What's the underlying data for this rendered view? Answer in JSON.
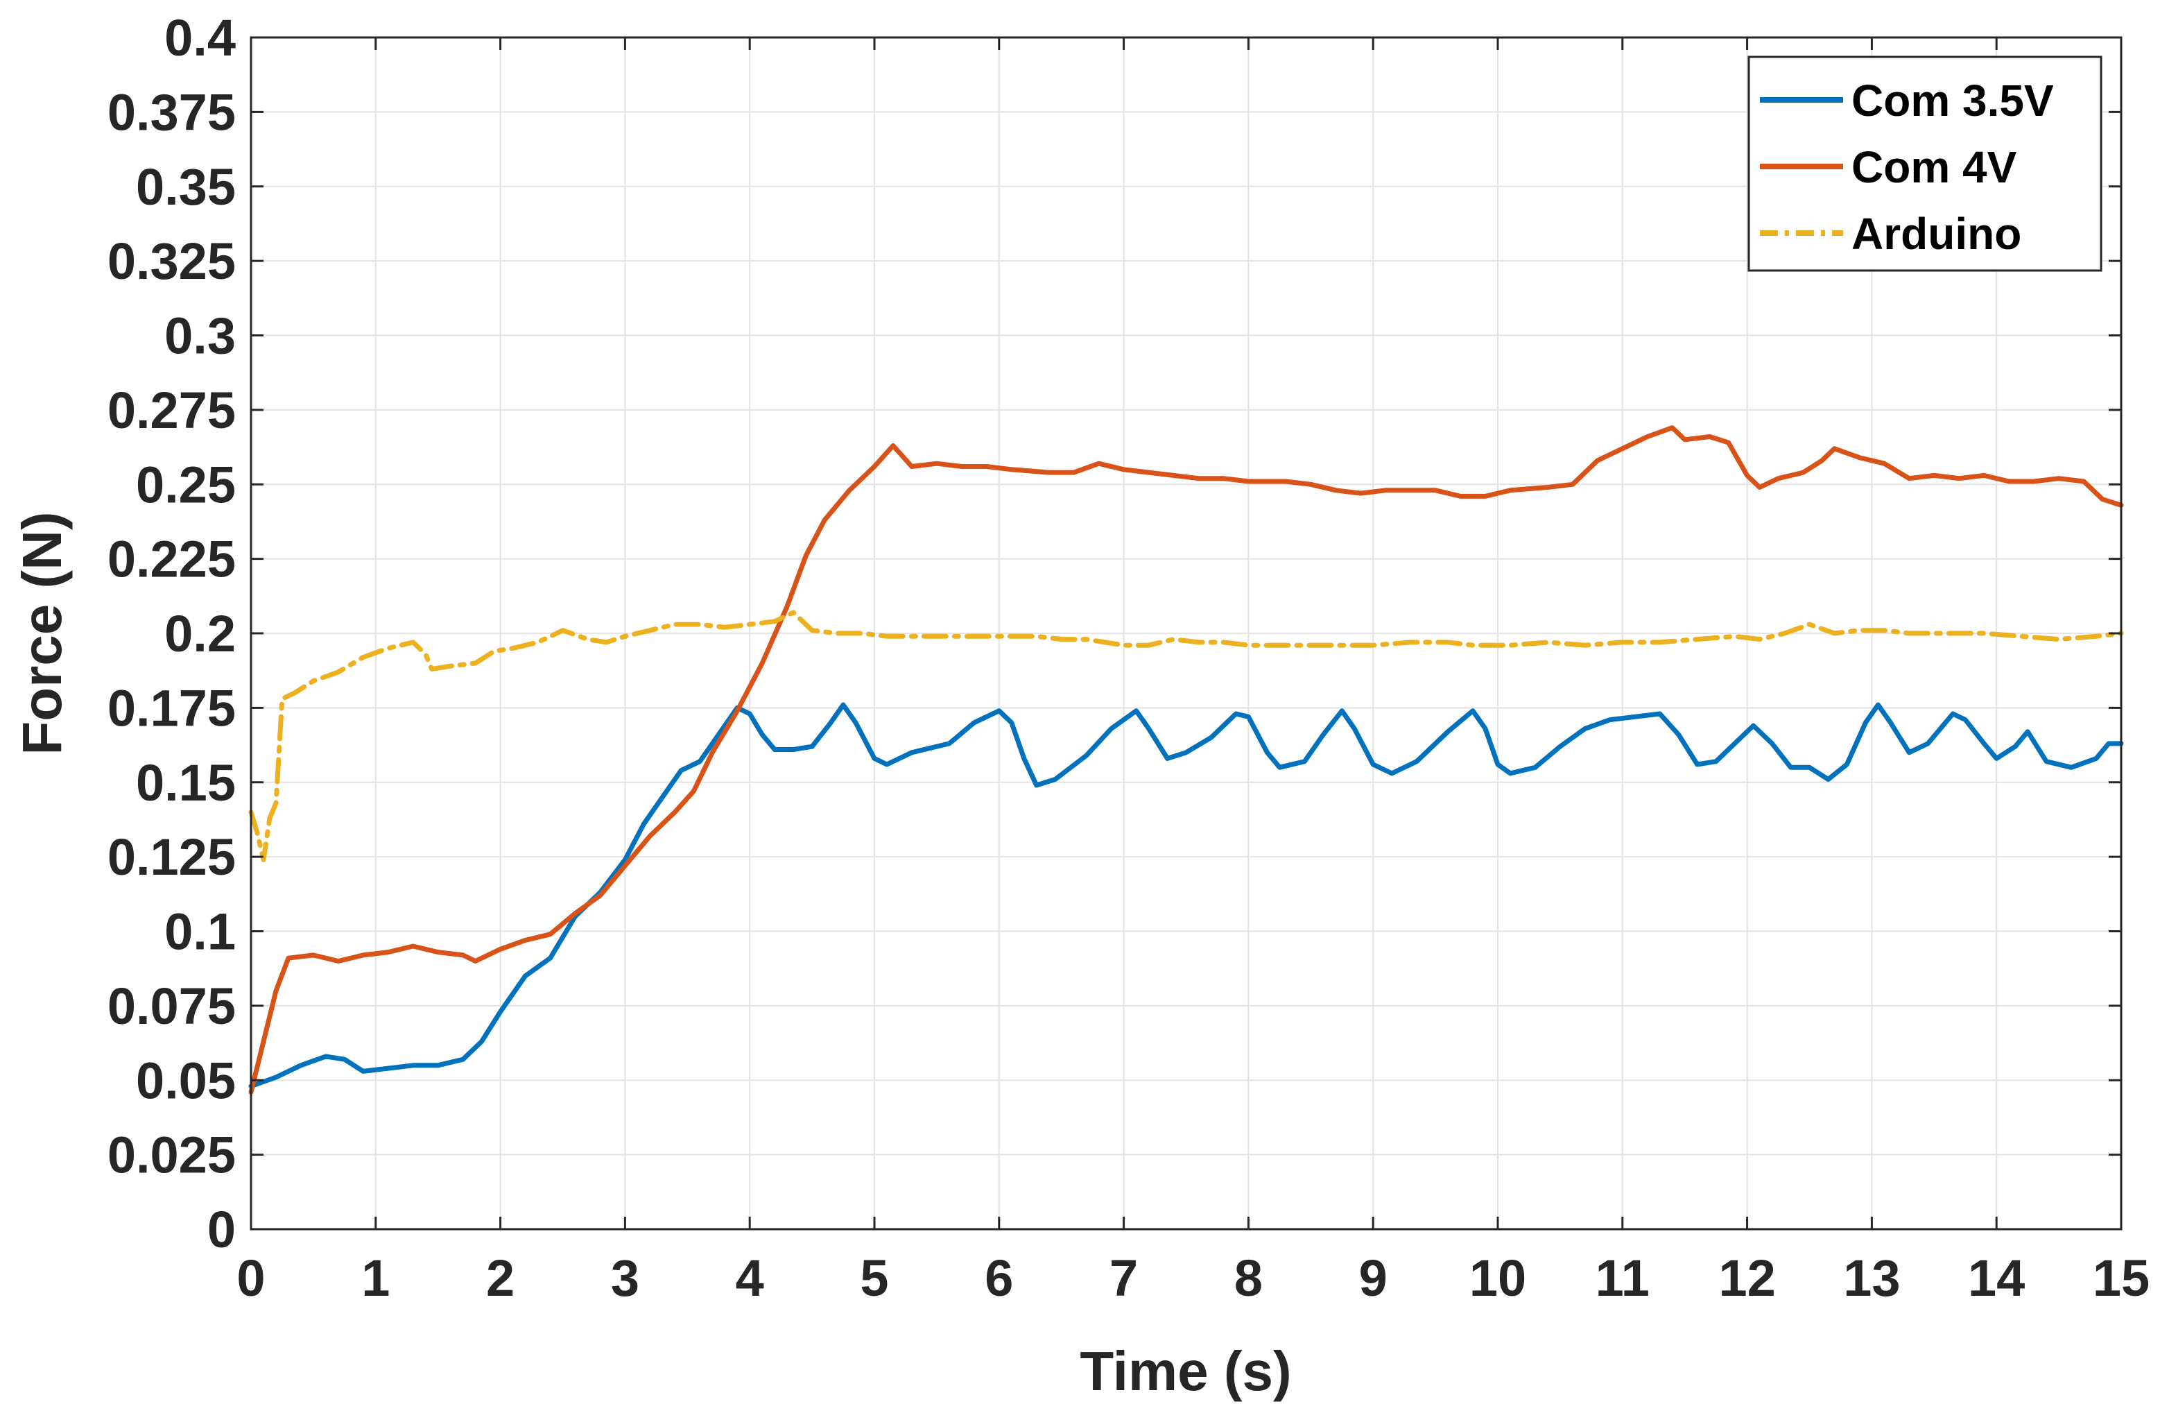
{
  "chart_data": {
    "type": "line",
    "title": "",
    "xlabel": "Time (s)",
    "ylabel": "Force (N)",
    "xlim": [
      0,
      15
    ],
    "ylim": [
      0,
      0.4
    ],
    "grid": true,
    "legend_position": "top-right",
    "x_ticks": [
      "0",
      "1",
      "2",
      "3",
      "4",
      "5",
      "6",
      "7",
      "8",
      "9",
      "10",
      "11",
      "12",
      "13",
      "14",
      "15"
    ],
    "y_ticks": [
      "0",
      "0.025",
      "0.05",
      "0.075",
      "0.1",
      "0.125",
      "0.15",
      "0.175",
      "0.2",
      "0.225",
      "0.25",
      "0.275",
      "0.3",
      "0.325",
      "0.35",
      "0.375",
      "0.4"
    ],
    "series": [
      {
        "name": "Com 3.5V",
        "color": "#0072BD",
        "dash": "solid",
        "points": [
          [
            0,
            0.048
          ],
          [
            0.2,
            0.051
          ],
          [
            0.4,
            0.055
          ],
          [
            0.6,
            0.058
          ],
          [
            0.75,
            0.057
          ],
          [
            0.9,
            0.053
          ],
          [
            1.1,
            0.054
          ],
          [
            1.3,
            0.055
          ],
          [
            1.5,
            0.055
          ],
          [
            1.7,
            0.057
          ],
          [
            1.85,
            0.063
          ],
          [
            2.0,
            0.073
          ],
          [
            2.2,
            0.085
          ],
          [
            2.4,
            0.091
          ],
          [
            2.6,
            0.105
          ],
          [
            2.8,
            0.113
          ],
          [
            3.0,
            0.124
          ],
          [
            3.15,
            0.136
          ],
          [
            3.3,
            0.145
          ],
          [
            3.45,
            0.154
          ],
          [
            3.6,
            0.157
          ],
          [
            3.75,
            0.166
          ],
          [
            3.9,
            0.175
          ],
          [
            4.0,
            0.173
          ],
          [
            4.1,
            0.166
          ],
          [
            4.2,
            0.161
          ],
          [
            4.35,
            0.161
          ],
          [
            4.5,
            0.162
          ],
          [
            4.65,
            0.17
          ],
          [
            4.75,
            0.176
          ],
          [
            4.85,
            0.17
          ],
          [
            5.0,
            0.158
          ],
          [
            5.1,
            0.156
          ],
          [
            5.3,
            0.16
          ],
          [
            5.6,
            0.163
          ],
          [
            5.8,
            0.17
          ],
          [
            6.0,
            0.174
          ],
          [
            6.1,
            0.17
          ],
          [
            6.2,
            0.158
          ],
          [
            6.3,
            0.149
          ],
          [
            6.45,
            0.151
          ],
          [
            6.7,
            0.159
          ],
          [
            6.9,
            0.168
          ],
          [
            7.1,
            0.174
          ],
          [
            7.2,
            0.168
          ],
          [
            7.35,
            0.158
          ],
          [
            7.5,
            0.16
          ],
          [
            7.7,
            0.165
          ],
          [
            7.9,
            0.173
          ],
          [
            8.0,
            0.172
          ],
          [
            8.15,
            0.16
          ],
          [
            8.25,
            0.155
          ],
          [
            8.45,
            0.157
          ],
          [
            8.6,
            0.166
          ],
          [
            8.75,
            0.174
          ],
          [
            8.85,
            0.168
          ],
          [
            9.0,
            0.156
          ],
          [
            9.15,
            0.153
          ],
          [
            9.35,
            0.157
          ],
          [
            9.6,
            0.167
          ],
          [
            9.8,
            0.174
          ],
          [
            9.9,
            0.168
          ],
          [
            10.0,
            0.156
          ],
          [
            10.1,
            0.153
          ],
          [
            10.3,
            0.155
          ],
          [
            10.5,
            0.162
          ],
          [
            10.7,
            0.168
          ],
          [
            10.9,
            0.171
          ],
          [
            11.1,
            0.172
          ],
          [
            11.3,
            0.173
          ],
          [
            11.45,
            0.166
          ],
          [
            11.6,
            0.156
          ],
          [
            11.75,
            0.157
          ],
          [
            11.9,
            0.163
          ],
          [
            12.05,
            0.169
          ],
          [
            12.2,
            0.163
          ],
          [
            12.35,
            0.155
          ],
          [
            12.5,
            0.155
          ],
          [
            12.65,
            0.151
          ],
          [
            12.8,
            0.156
          ],
          [
            12.95,
            0.17
          ],
          [
            13.05,
            0.176
          ],
          [
            13.15,
            0.17
          ],
          [
            13.3,
            0.16
          ],
          [
            13.45,
            0.163
          ],
          [
            13.65,
            0.173
          ],
          [
            13.75,
            0.171
          ],
          [
            13.9,
            0.163
          ],
          [
            14.0,
            0.158
          ],
          [
            14.15,
            0.162
          ],
          [
            14.25,
            0.167
          ],
          [
            14.4,
            0.157
          ],
          [
            14.6,
            0.155
          ],
          [
            14.8,
            0.158
          ],
          [
            14.9,
            0.163
          ],
          [
            15.0,
            0.163
          ]
        ]
      },
      {
        "name": "Com 4V",
        "color": "#D95319",
        "dash": "solid",
        "points": [
          [
            0,
            0.046
          ],
          [
            0.1,
            0.063
          ],
          [
            0.2,
            0.08
          ],
          [
            0.3,
            0.091
          ],
          [
            0.5,
            0.092
          ],
          [
            0.7,
            0.09
          ],
          [
            0.9,
            0.092
          ],
          [
            1.1,
            0.093
          ],
          [
            1.3,
            0.095
          ],
          [
            1.5,
            0.093
          ],
          [
            1.7,
            0.092
          ],
          [
            1.8,
            0.09
          ],
          [
            2.0,
            0.094
          ],
          [
            2.2,
            0.097
          ],
          [
            2.4,
            0.099
          ],
          [
            2.6,
            0.106
          ],
          [
            2.8,
            0.112
          ],
          [
            3.0,
            0.122
          ],
          [
            3.2,
            0.132
          ],
          [
            3.4,
            0.14
          ],
          [
            3.55,
            0.147
          ],
          [
            3.7,
            0.16
          ],
          [
            3.9,
            0.174
          ],
          [
            4.1,
            0.19
          ],
          [
            4.3,
            0.209
          ],
          [
            4.45,
            0.226
          ],
          [
            4.6,
            0.238
          ],
          [
            4.8,
            0.248
          ],
          [
            5.0,
            0.256
          ],
          [
            5.15,
            0.263
          ],
          [
            5.3,
            0.256
          ],
          [
            5.5,
            0.257
          ],
          [
            5.7,
            0.256
          ],
          [
            5.9,
            0.256
          ],
          [
            6.1,
            0.255
          ],
          [
            6.4,
            0.254
          ],
          [
            6.6,
            0.254
          ],
          [
            6.8,
            0.257
          ],
          [
            7.0,
            0.255
          ],
          [
            7.2,
            0.254
          ],
          [
            7.4,
            0.253
          ],
          [
            7.6,
            0.252
          ],
          [
            7.8,
            0.252
          ],
          [
            8.0,
            0.251
          ],
          [
            8.3,
            0.251
          ],
          [
            8.5,
            0.25
          ],
          [
            8.7,
            0.248
          ],
          [
            8.9,
            0.247
          ],
          [
            9.1,
            0.248
          ],
          [
            9.3,
            0.248
          ],
          [
            9.5,
            0.248
          ],
          [
            9.7,
            0.246
          ],
          [
            9.9,
            0.246
          ],
          [
            10.1,
            0.248
          ],
          [
            10.4,
            0.249
          ],
          [
            10.6,
            0.25
          ],
          [
            10.8,
            0.258
          ],
          [
            11.0,
            0.262
          ],
          [
            11.2,
            0.266
          ],
          [
            11.4,
            0.269
          ],
          [
            11.5,
            0.265
          ],
          [
            11.7,
            0.266
          ],
          [
            11.85,
            0.264
          ],
          [
            12.0,
            0.253
          ],
          [
            12.1,
            0.249
          ],
          [
            12.25,
            0.252
          ],
          [
            12.45,
            0.254
          ],
          [
            12.6,
            0.258
          ],
          [
            12.7,
            0.262
          ],
          [
            12.9,
            0.259
          ],
          [
            13.1,
            0.257
          ],
          [
            13.3,
            0.252
          ],
          [
            13.5,
            0.253
          ],
          [
            13.7,
            0.252
          ],
          [
            13.9,
            0.253
          ],
          [
            14.1,
            0.251
          ],
          [
            14.3,
            0.251
          ],
          [
            14.5,
            0.252
          ],
          [
            14.7,
            0.251
          ],
          [
            14.85,
            0.245
          ],
          [
            15.0,
            0.243
          ]
        ]
      },
      {
        "name": "Arduino",
        "color": "#EDB120",
        "dash": "dash-dot",
        "points": [
          [
            0,
            0.14
          ],
          [
            0.05,
            0.133
          ],
          [
            0.1,
            0.124
          ],
          [
            0.15,
            0.138
          ],
          [
            0.2,
            0.143
          ],
          [
            0.25,
            0.178
          ],
          [
            0.35,
            0.18
          ],
          [
            0.5,
            0.184
          ],
          [
            0.7,
            0.187
          ],
          [
            0.9,
            0.192
          ],
          [
            1.1,
            0.195
          ],
          [
            1.3,
            0.197
          ],
          [
            1.4,
            0.193
          ],
          [
            1.45,
            0.188
          ],
          [
            1.6,
            0.189
          ],
          [
            1.8,
            0.19
          ],
          [
            1.95,
            0.194
          ],
          [
            2.1,
            0.195
          ],
          [
            2.3,
            0.197
          ],
          [
            2.5,
            0.201
          ],
          [
            2.7,
            0.198
          ],
          [
            2.85,
            0.197
          ],
          [
            3.0,
            0.199
          ],
          [
            3.2,
            0.201
          ],
          [
            3.4,
            0.203
          ],
          [
            3.6,
            0.203
          ],
          [
            3.8,
            0.202
          ],
          [
            4.0,
            0.203
          ],
          [
            4.2,
            0.204
          ],
          [
            4.35,
            0.207
          ],
          [
            4.5,
            0.201
          ],
          [
            4.7,
            0.2
          ],
          [
            4.9,
            0.2
          ],
          [
            5.1,
            0.199
          ],
          [
            5.3,
            0.199
          ],
          [
            5.6,
            0.199
          ],
          [
            5.8,
            0.199
          ],
          [
            6.0,
            0.199
          ],
          [
            6.3,
            0.199
          ],
          [
            6.5,
            0.198
          ],
          [
            6.7,
            0.198
          ],
          [
            7.0,
            0.196
          ],
          [
            7.2,
            0.196
          ],
          [
            7.4,
            0.198
          ],
          [
            7.6,
            0.197
          ],
          [
            7.8,
            0.197
          ],
          [
            8.0,
            0.196
          ],
          [
            8.2,
            0.196
          ],
          [
            8.5,
            0.196
          ],
          [
            8.8,
            0.196
          ],
          [
            9.0,
            0.196
          ],
          [
            9.3,
            0.197
          ],
          [
            9.6,
            0.197
          ],
          [
            9.8,
            0.196
          ],
          [
            10.1,
            0.196
          ],
          [
            10.4,
            0.197
          ],
          [
            10.7,
            0.196
          ],
          [
            11.0,
            0.197
          ],
          [
            11.3,
            0.197
          ],
          [
            11.6,
            0.198
          ],
          [
            11.9,
            0.199
          ],
          [
            12.1,
            0.198
          ],
          [
            12.3,
            0.2
          ],
          [
            12.5,
            0.203
          ],
          [
            12.7,
            0.2
          ],
          [
            12.9,
            0.201
          ],
          [
            13.1,
            0.201
          ],
          [
            13.3,
            0.2
          ],
          [
            13.6,
            0.2
          ],
          [
            13.9,
            0.2
          ],
          [
            14.2,
            0.199
          ],
          [
            14.5,
            0.198
          ],
          [
            14.8,
            0.199
          ],
          [
            15.0,
            0.2
          ]
        ]
      }
    ]
  }
}
